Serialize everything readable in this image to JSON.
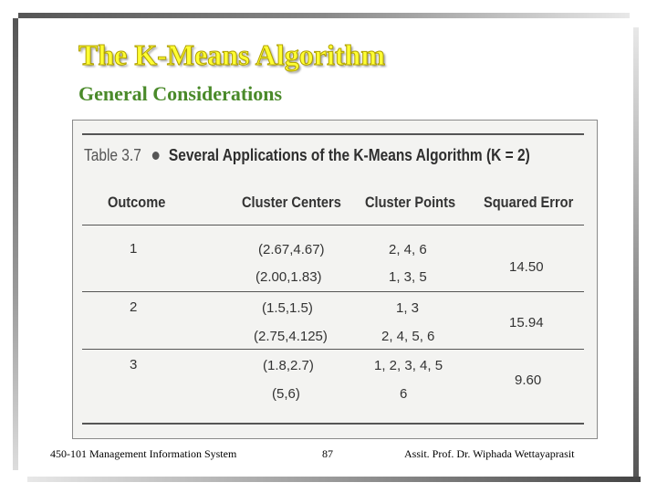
{
  "slide": {
    "title": "The K-Means Algorithm",
    "subtitle": "General Considerations"
  },
  "table": {
    "number": "Table 3.7",
    "title": "Several Applications of the K-Means Algorithm (K = 2)",
    "headers": {
      "outcome": "Outcome",
      "centers": "Cluster Centers",
      "points": "Cluster Points",
      "error": "Squared Error"
    },
    "rows": [
      {
        "outcome": "1",
        "centers": [
          "(2.67,4.67)",
          "(2.00,1.83)"
        ],
        "points": [
          "2, 4, 6",
          "1, 3, 5"
        ],
        "error": "14.50"
      },
      {
        "outcome": "2",
        "centers": [
          "(1.5,1.5)",
          "(2.75,4.125)"
        ],
        "points": [
          "1, 3",
          "2, 4, 5, 6"
        ],
        "error": "15.94"
      },
      {
        "outcome": "3",
        "centers": [
          "(1.8,2.7)",
          "(5,6)"
        ],
        "points": [
          "1, 2, 3, 4, 5",
          "6"
        ],
        "error": "9.60"
      }
    ]
  },
  "footer": {
    "course": "450-101 Management Information System",
    "page": "87",
    "author": "Assit. Prof. Dr. Wiphada  Wettayaprasit"
  }
}
